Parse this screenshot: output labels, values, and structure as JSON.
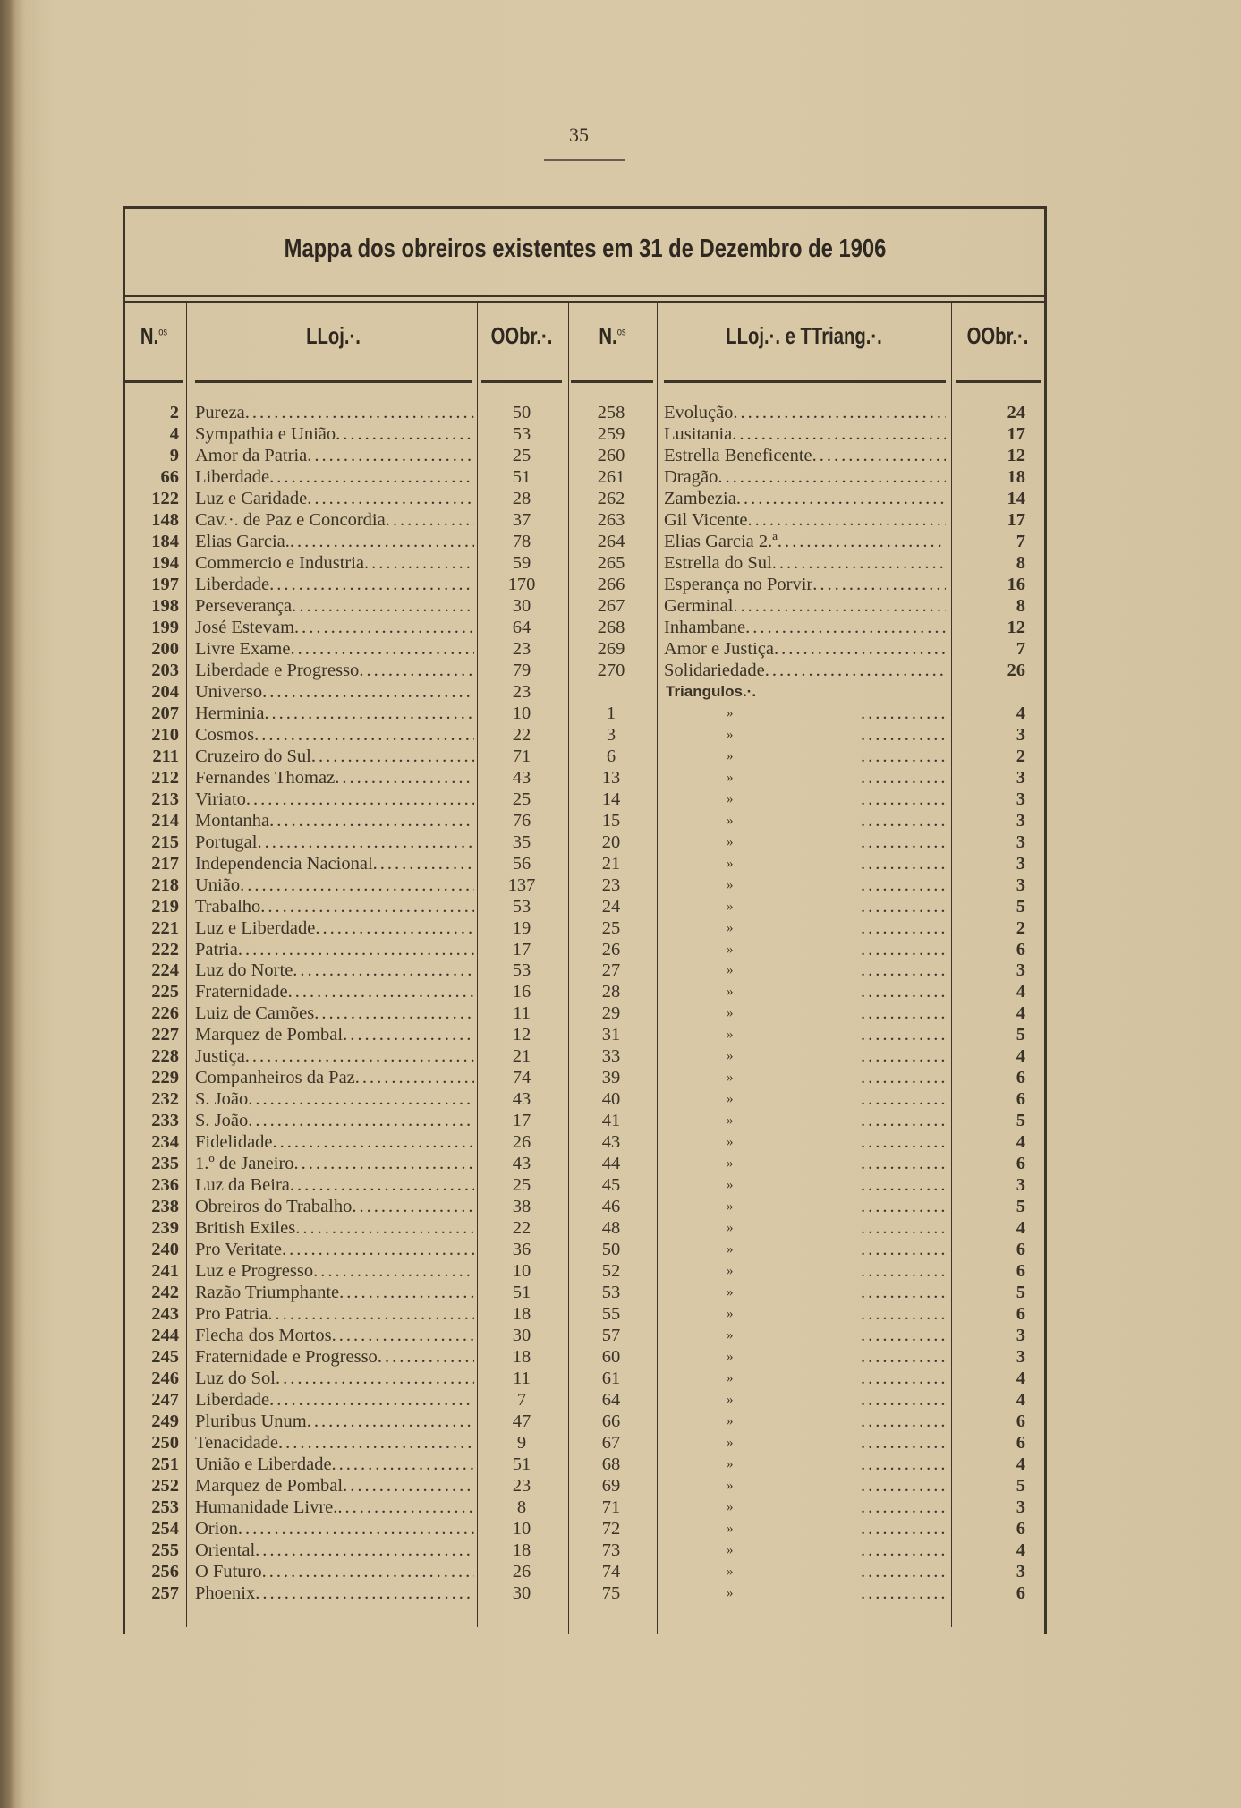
{
  "page_number": "35",
  "title": "Mappa dos obreiros existentes em 31 de Dezembro de 1906",
  "headers": {
    "left_num": "N.",
    "left_num_sup": "os",
    "left_name": "LLoj.·.",
    "left_count": "OObr.·.",
    "right_num": "N.",
    "right_num_sup": "os",
    "right_name": "LLoj.·. e TTriang.·.",
    "right_count": "OObr.·."
  },
  "left_rows": [
    [
      "2",
      "Pureza",
      "50"
    ],
    [
      "4",
      "Sympathia e União",
      "53"
    ],
    [
      "9",
      "Amor da Patria",
      "25"
    ],
    [
      "66",
      "Liberdade",
      "51"
    ],
    [
      "122",
      "Luz e Caridade",
      "28"
    ],
    [
      "148",
      "Cav.·. de Paz e Concordia",
      "37"
    ],
    [
      "184",
      "Elias Garcia.",
      "78"
    ],
    [
      "194",
      "Commercio e Industria",
      "59"
    ],
    [
      "197",
      "Liberdade",
      "170"
    ],
    [
      "198",
      "Perseverança",
      "30"
    ],
    [
      "199",
      "José Estevam",
      "64"
    ],
    [
      "200",
      "Livre Exame",
      "23"
    ],
    [
      "203",
      "Liberdade e Progresso",
      "79"
    ],
    [
      "204",
      "Universo",
      "23"
    ],
    [
      "207",
      "Herminia",
      "10"
    ],
    [
      "210",
      "Cosmos",
      "22"
    ],
    [
      "211",
      "Cruzeiro do Sul",
      "71"
    ],
    [
      "212",
      "Fernandes Thomaz",
      "43"
    ],
    [
      "213",
      "Viriato",
      "25"
    ],
    [
      "214",
      "Montanha",
      "76"
    ],
    [
      "215",
      "Portugal",
      "35"
    ],
    [
      "217",
      "Independencia Nacional",
      "56"
    ],
    [
      "218",
      "União",
      "137"
    ],
    [
      "219",
      "Trabalho",
      "53"
    ],
    [
      "221",
      "Luz e Liberdade",
      "19"
    ],
    [
      "222",
      "Patria",
      "17"
    ],
    [
      "224",
      "Luz do Norte",
      "53"
    ],
    [
      "225",
      "Fraternidade",
      "16"
    ],
    [
      "226",
      "Luiz de Camões",
      "11"
    ],
    [
      "227",
      "Marquez de Pombal",
      "12"
    ],
    [
      "228",
      "Justiça",
      "21"
    ],
    [
      "229",
      "Companheiros da Paz",
      "74"
    ],
    [
      "232",
      "S. João",
      "43"
    ],
    [
      "233",
      "S. João",
      "17"
    ],
    [
      "234",
      "Fidelidade",
      "26"
    ],
    [
      "235",
      "1.º de Janeiro",
      "43"
    ],
    [
      "236",
      "Luz da Beira",
      "25"
    ],
    [
      "238",
      "Obreiros do Trabalho",
      "38"
    ],
    [
      "239",
      "British Exiles",
      "22"
    ],
    [
      "240",
      "Pro Veritate",
      "36"
    ],
    [
      "241",
      "Luz e Progresso",
      "10"
    ],
    [
      "242",
      "Razão Triumphante",
      "51"
    ],
    [
      "243",
      "Pro Patria",
      "18"
    ],
    [
      "244",
      "Flecha dos Mortos",
      "30"
    ],
    [
      "245",
      "Fraternidade e Progresso",
      "18"
    ],
    [
      "246",
      "Luz do Sol",
      "11"
    ],
    [
      "247",
      "Liberdade",
      "7"
    ],
    [
      "249",
      "Pluribus Unum",
      "47"
    ],
    [
      "250",
      "Tenacidade",
      "9"
    ],
    [
      "251",
      "União e Liberdade",
      "51"
    ],
    [
      "252",
      "Marquez de Pombal",
      "23"
    ],
    [
      "253",
      "Humanidade Livre.",
      "8"
    ],
    [
      "254",
      "Orion",
      "10"
    ],
    [
      "255",
      "Oriental",
      "18"
    ],
    [
      "256",
      "O Futuro",
      "26"
    ],
    [
      "257",
      "Phoenix",
      "30"
    ]
  ],
  "right_lodges": [
    [
      "258",
      "Evolução",
      "24"
    ],
    [
      "259",
      "Lusitania",
      "17"
    ],
    [
      "260",
      "Estrella Beneficente",
      "12"
    ],
    [
      "261",
      "Dragão",
      "18"
    ],
    [
      "262",
      "Zambezia",
      "14"
    ],
    [
      "263",
      "Gil Vicente",
      "17"
    ],
    [
      "264",
      "Elias Garcia 2.ª",
      "7"
    ],
    [
      "265",
      "Estrella do Sul",
      "8"
    ],
    [
      "266",
      "Esperança no Porvir",
      "16"
    ],
    [
      "267",
      "Germinal",
      "8"
    ],
    [
      "268",
      "Inhambane",
      "12"
    ],
    [
      "269",
      "Amor e Justiça",
      "7"
    ],
    [
      "270",
      "Solidariedade",
      "26"
    ]
  ],
  "triangles_heading": "Triangulos.·.",
  "ditto_mark": "»",
  "right_triangles": [
    [
      "1",
      "4"
    ],
    [
      "3",
      "3"
    ],
    [
      "6",
      "2"
    ],
    [
      "13",
      "3"
    ],
    [
      "14",
      "3"
    ],
    [
      "15",
      "3"
    ],
    [
      "20",
      "3"
    ],
    [
      "21",
      "3"
    ],
    [
      "23",
      "3"
    ],
    [
      "24",
      "5"
    ],
    [
      "25",
      "2"
    ],
    [
      "26",
      "6"
    ],
    [
      "27",
      "3"
    ],
    [
      "28",
      "4"
    ],
    [
      "29",
      "4"
    ],
    [
      "31",
      "5"
    ],
    [
      "33",
      "4"
    ],
    [
      "39",
      "6"
    ],
    [
      "40",
      "6"
    ],
    [
      "41",
      "5"
    ],
    [
      "43",
      "4"
    ],
    [
      "44",
      "6"
    ],
    [
      "45",
      "3"
    ],
    [
      "46",
      "5"
    ],
    [
      "48",
      "4"
    ],
    [
      "50",
      "6"
    ],
    [
      "52",
      "6"
    ],
    [
      "53",
      "5"
    ],
    [
      "55",
      "6"
    ],
    [
      "57",
      "3"
    ],
    [
      "60",
      "3"
    ],
    [
      "61",
      "4"
    ],
    [
      "64",
      "4"
    ],
    [
      "66",
      "6"
    ],
    [
      "67",
      "6"
    ],
    [
      "68",
      "4"
    ],
    [
      "69",
      "5"
    ],
    [
      "71",
      "3"
    ],
    [
      "72",
      "6"
    ],
    [
      "73",
      "4"
    ],
    [
      "74",
      "3"
    ],
    [
      "75",
      "6"
    ]
  ]
}
